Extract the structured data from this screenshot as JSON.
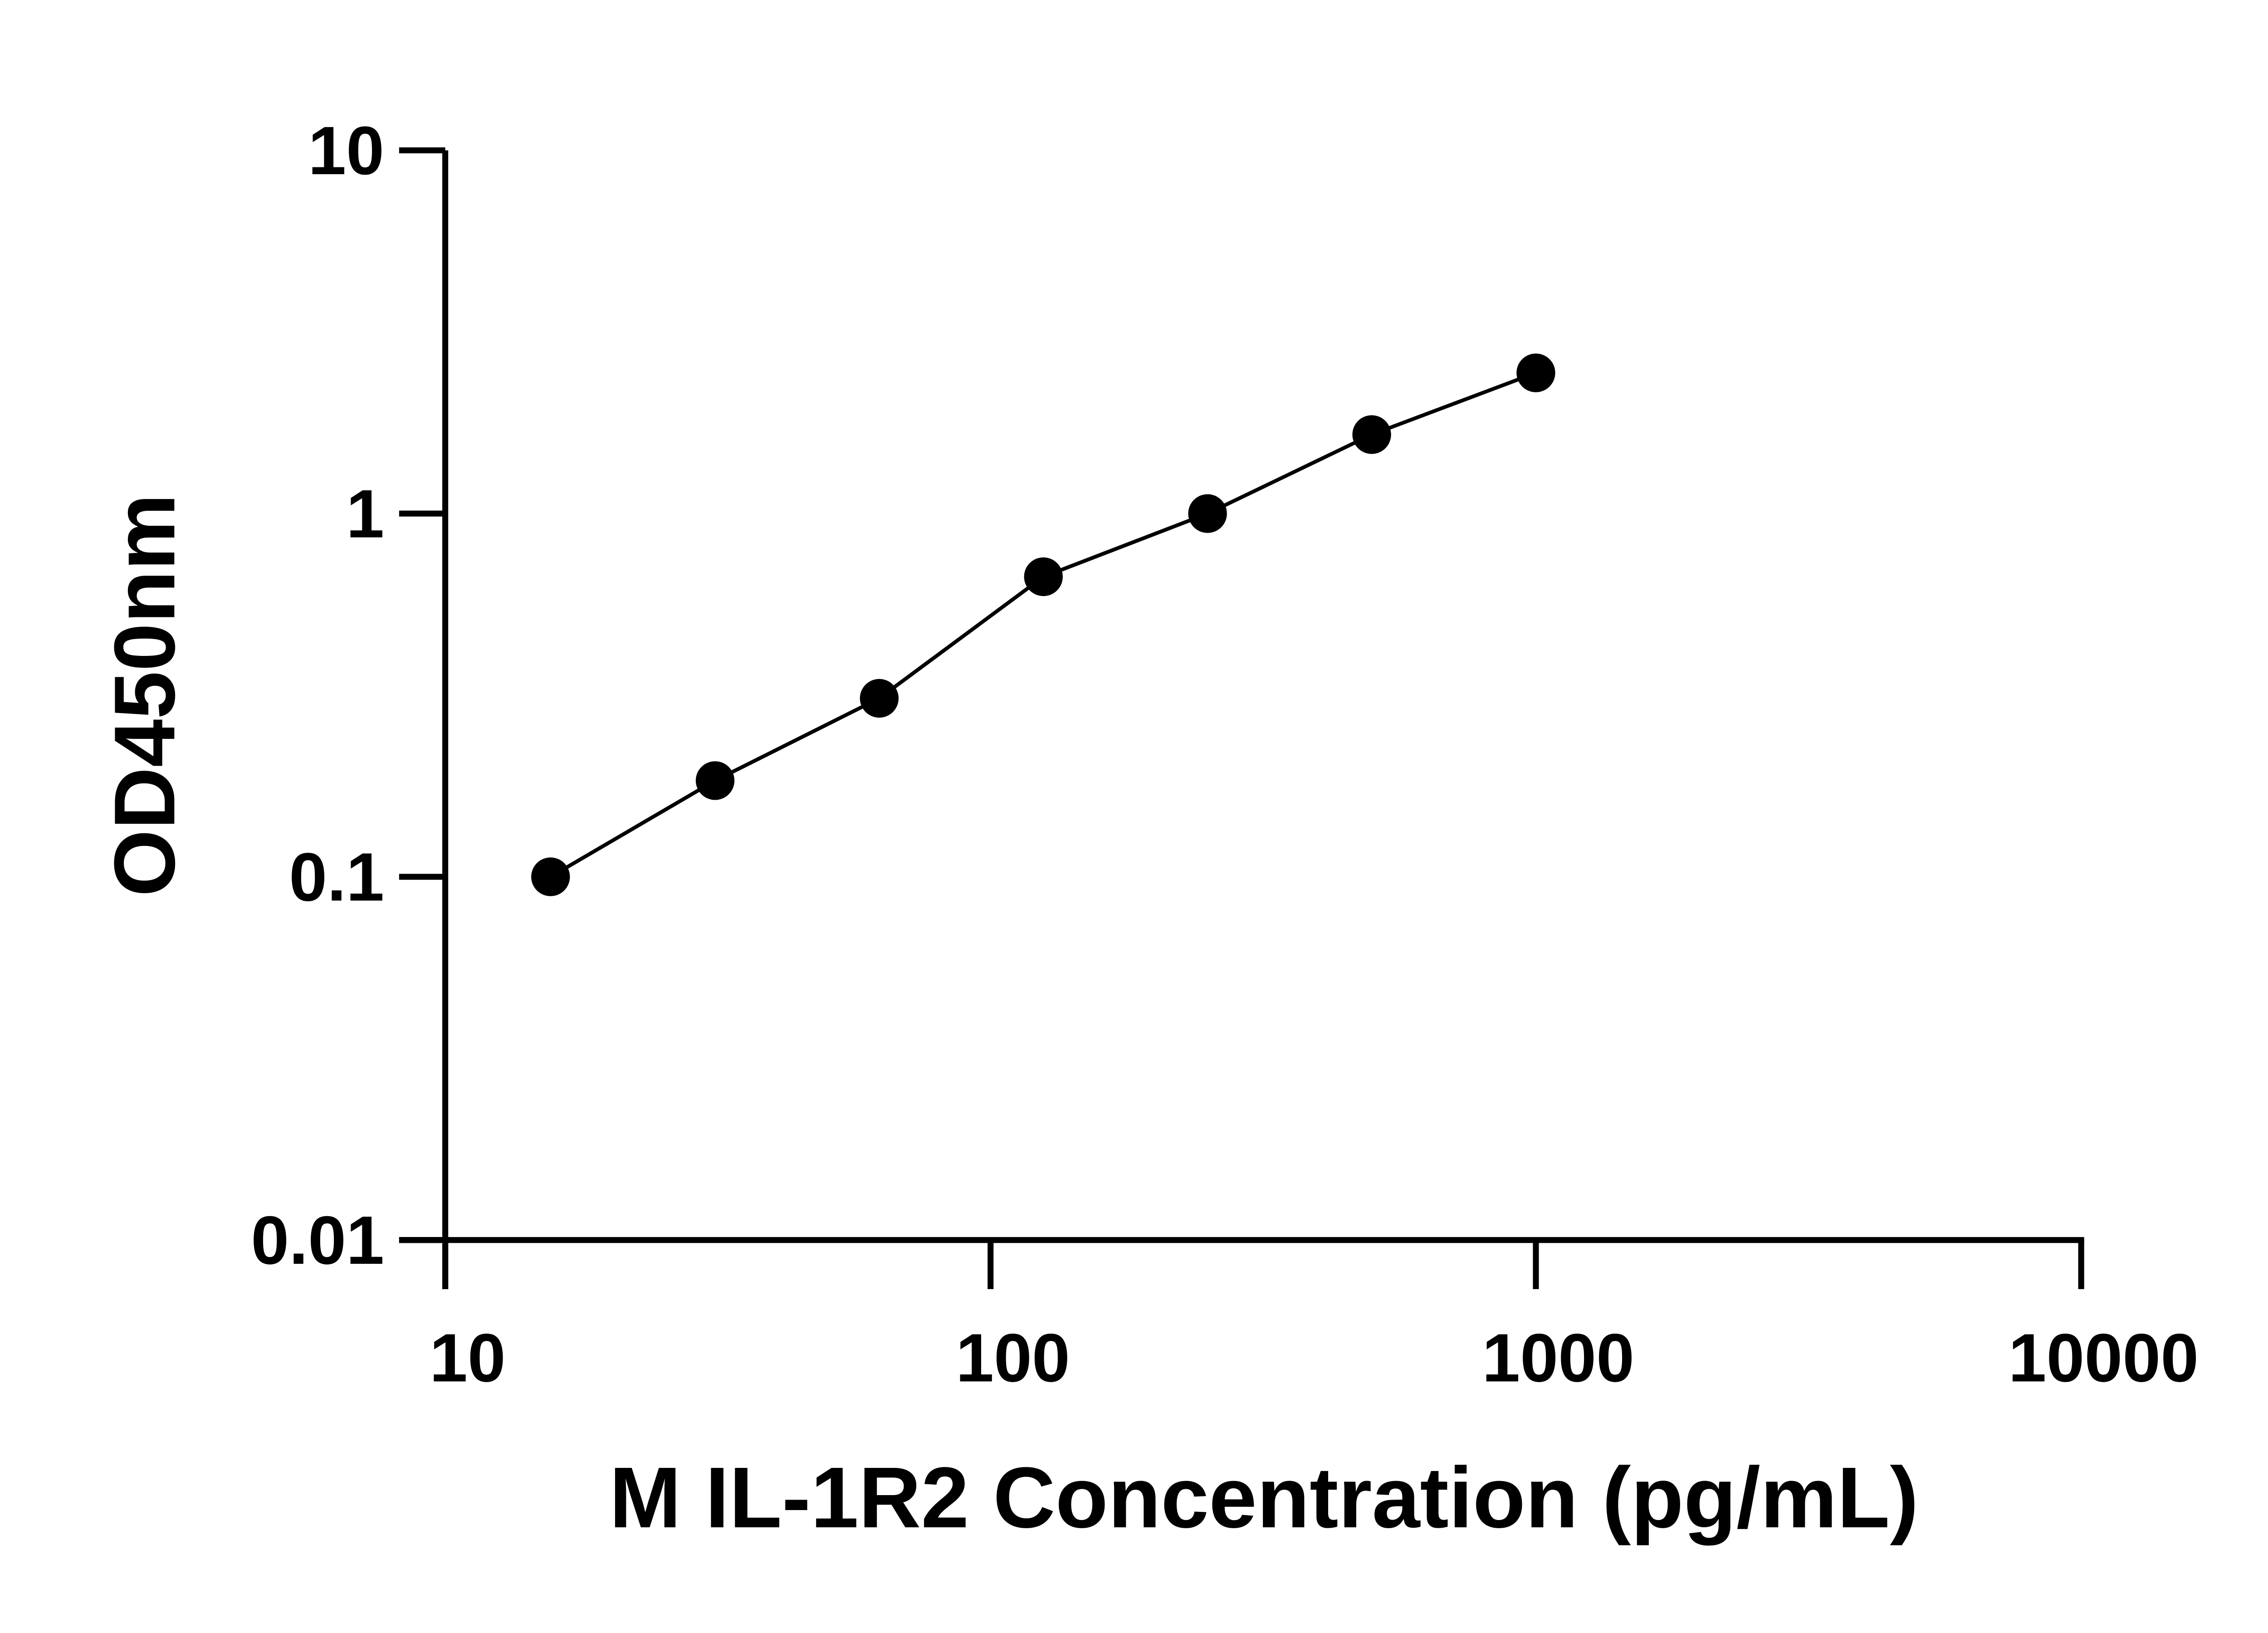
{
  "chart_data": {
    "type": "scatter",
    "title": "",
    "xlabel": "M IL-1R2 Concentration (pg/mL)",
    "ylabel": "OD450nm",
    "xscale": "log",
    "yscale": "log",
    "xlim": [
      10,
      10000
    ],
    "ylim": [
      0.01,
      10
    ],
    "xticks": [
      "10",
      "100",
      "1000",
      "10000"
    ],
    "yticks": [
      "0.01",
      "0.1",
      "1",
      "10"
    ],
    "grid": false,
    "legend": "none",
    "fit_line": true,
    "marker_color": "#000000",
    "line_color": "#000000",
    "x": [
      15.6,
      31.25,
      62.5,
      125,
      250,
      500,
      1000
    ],
    "y": [
      0.1,
      0.184,
      0.31,
      0.67,
      1.0,
      1.65,
      2.44
    ]
  }
}
